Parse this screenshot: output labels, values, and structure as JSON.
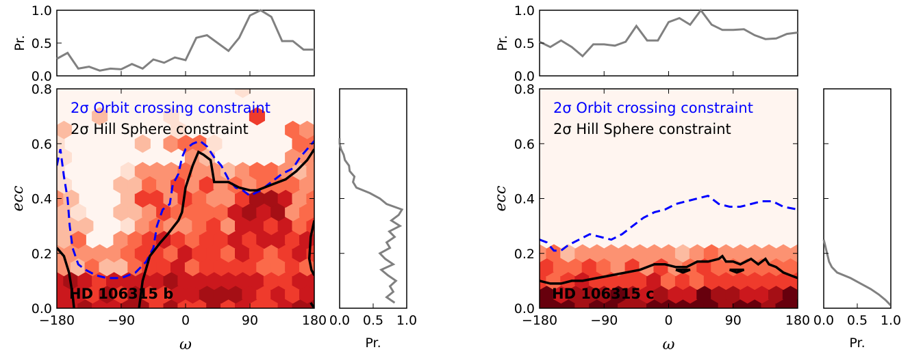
{
  "colors": {
    "blue_constraint": "#0000ff",
    "hill_constraint": "#000000",
    "marginal": "#808080",
    "hex_scale": [
      "#fff5f0",
      "#fee0d2",
      "#fcbba1",
      "#fc9272",
      "#fb6a4a",
      "#ef3b2c",
      "#cb181d",
      "#a50f15",
      "#67000d"
    ]
  },
  "chart_data": [
    {
      "type": "hexbin",
      "panel": "HD 106315 b",
      "label": "HD 106315 b",
      "xlabel": "ω",
      "ylabel": "ecc",
      "xlim": [
        -180,
        180
      ],
      "ylim": [
        0,
        0.8
      ],
      "xticks": [
        "−180",
        "−90",
        "0",
        "90",
        "180"
      ],
      "yticks": [
        "0.0",
        "0.2",
        "0.4",
        "0.6",
        "0.8"
      ],
      "legend": [
        "2σ Orbit crossing constraint",
        "2σ Hill Sphere constraint"
      ],
      "top_marginal": {
        "ylabel": "Pr.",
        "yticks": [
          "0.0",
          "0.5",
          "1.0"
        ],
        "x": [
          -180,
          -165,
          -150,
          -135,
          -120,
          -105,
          -90,
          -75,
          -60,
          -45,
          -30,
          -15,
          0,
          15,
          30,
          45,
          60,
          75,
          90,
          105,
          120,
          135,
          150,
          165,
          180
        ],
        "y": [
          0.26,
          0.35,
          0.11,
          0.14,
          0.08,
          0.11,
          0.1,
          0.18,
          0.11,
          0.25,
          0.2,
          0.28,
          0.24,
          0.58,
          0.62,
          0.5,
          0.38,
          0.58,
          0.92,
          1.0,
          0.9,
          0.53,
          0.53,
          0.4,
          0.4
        ]
      },
      "right_marginal": {
        "xlabel": "Pr.",
        "xticks": [
          "0.0",
          "0.5",
          "1.0"
        ],
        "ecc": [
          0.02,
          0.04,
          0.06,
          0.08,
          0.1,
          0.12,
          0.14,
          0.16,
          0.18,
          0.2,
          0.22,
          0.24,
          0.26,
          0.28,
          0.3,
          0.32,
          0.34,
          0.36,
          0.38,
          0.4,
          0.42,
          0.44,
          0.46,
          0.48,
          0.5,
          0.52,
          0.54,
          0.56,
          0.58,
          0.6,
          0.62
        ],
        "pr": [
          0.82,
          0.7,
          0.8,
          0.75,
          0.84,
          0.72,
          0.62,
          0.8,
          0.68,
          0.6,
          0.75,
          0.7,
          0.82,
          0.74,
          0.9,
          0.77,
          0.88,
          0.93,
          0.7,
          0.6,
          0.45,
          0.25,
          0.2,
          0.22,
          0.15,
          0.14,
          0.08,
          0.06,
          0.02,
          0.0,
          0.0
        ]
      },
      "orbit_crossing": [
        [
          -180,
          0.52
        ],
        [
          -175,
          0.58
        ],
        [
          -170,
          0.48
        ],
        [
          -165,
          0.4
        ],
        [
          -162,
          0.3
        ],
        [
          -158,
          0.22
        ],
        [
          -150,
          0.16
        ],
        [
          -140,
          0.14
        ],
        [
          -125,
          0.12
        ],
        [
          -110,
          0.11
        ],
        [
          -90,
          0.11
        ],
        [
          -70,
          0.13
        ],
        [
          -55,
          0.17
        ],
        [
          -45,
          0.22
        ],
        [
          -40,
          0.3
        ],
        [
          -32,
          0.36
        ],
        [
          -22,
          0.38
        ],
        [
          -18,
          0.45
        ],
        [
          -10,
          0.49
        ],
        [
          -5,
          0.55
        ],
        [
          0,
          0.58
        ],
        [
          10,
          0.6
        ],
        [
          20,
          0.61
        ],
        [
          30,
          0.59
        ],
        [
          40,
          0.55
        ],
        [
          50,
          0.52
        ],
        [
          60,
          0.47
        ],
        [
          70,
          0.44
        ],
        [
          80,
          0.43
        ],
        [
          90,
          0.41
        ],
        [
          105,
          0.43
        ],
        [
          120,
          0.46
        ],
        [
          135,
          0.49
        ],
        [
          150,
          0.51
        ],
        [
          160,
          0.55
        ],
        [
          170,
          0.58
        ],
        [
          180,
          0.61
        ]
      ],
      "hill_sphere": [
        [
          -180,
          0.22
        ],
        [
          -170,
          0.19
        ],
        [
          -163,
          0.13
        ],
        [
          -158,
          0.05
        ],
        [
          -156,
          0.0
        ],
        null,
        [
          -65,
          0.0
        ],
        [
          -60,
          0.1
        ],
        [
          -50,
          0.19
        ],
        [
          -35,
          0.24
        ],
        [
          -25,
          0.27
        ],
        [
          -10,
          0.32
        ],
        [
          -5,
          0.35
        ],
        [
          0,
          0.44
        ],
        [
          5,
          0.48
        ],
        [
          10,
          0.52
        ],
        [
          18,
          0.57
        ],
        [
          25,
          0.56
        ],
        [
          35,
          0.54
        ],
        [
          40,
          0.46
        ],
        [
          60,
          0.46
        ],
        [
          75,
          0.44
        ],
        [
          90,
          0.43
        ],
        [
          100,
          0.43
        ],
        [
          120,
          0.45
        ],
        [
          140,
          0.47
        ],
        [
          155,
          0.5
        ],
        [
          170,
          0.54
        ],
        [
          180,
          0.58
        ],
        null,
        [
          180,
          0.32
        ],
        [
          175,
          0.26
        ],
        [
          173,
          0.18
        ],
        [
          176,
          0.14
        ],
        [
          180,
          0.12
        ],
        null,
        [
          180,
          0.0
        ],
        [
          175,
          0.02
        ]
      ]
    },
    {
      "type": "hexbin",
      "panel": "HD 106315 c",
      "label": "HD 106315 c",
      "xlabel": "ω",
      "ylabel": "ecc",
      "xlim": [
        -180,
        180
      ],
      "ylim": [
        0,
        0.8
      ],
      "xticks": [
        "−180",
        "−90",
        "0",
        "90",
        "180"
      ],
      "yticks": [
        "0.0",
        "0.2",
        "0.4",
        "0.6",
        "0.8"
      ],
      "legend": [
        "2σ Orbit crossing constraint",
        "2σ Hill Sphere constraint"
      ],
      "top_marginal": {
        "ylabel": "Pr.",
        "yticks": [
          "0.0",
          "0.5",
          "1.0"
        ],
        "x": [
          -180,
          -165,
          -150,
          -135,
          -120,
          -105,
          -90,
          -75,
          -60,
          -45,
          -30,
          -15,
          0,
          15,
          30,
          45,
          60,
          75,
          90,
          105,
          120,
          135,
          150,
          165,
          180
        ],
        "y": [
          0.52,
          0.44,
          0.54,
          0.44,
          0.3,
          0.48,
          0.48,
          0.46,
          0.52,
          0.76,
          0.54,
          0.54,
          0.82,
          0.88,
          0.78,
          1.0,
          0.78,
          0.7,
          0.7,
          0.71,
          0.62,
          0.56,
          0.57,
          0.64,
          0.66
        ]
      },
      "right_marginal": {
        "xlabel": "Pr.",
        "xticks": [
          "0.0",
          "0.5",
          "1.0"
        ],
        "ecc": [
          0.01,
          0.03,
          0.05,
          0.07,
          0.09,
          0.11,
          0.13,
          0.15,
          0.17,
          0.19,
          0.21,
          0.23,
          0.25
        ],
        "pr": [
          1.0,
          0.92,
          0.82,
          0.7,
          0.55,
          0.4,
          0.2,
          0.12,
          0.08,
          0.06,
          0.04,
          0.02,
          0.0
        ]
      },
      "orbit_crossing": [
        [
          -180,
          0.25
        ],
        [
          -170,
          0.24
        ],
        [
          -160,
          0.21
        ],
        [
          -150,
          0.21
        ],
        [
          -140,
          0.23
        ],
        [
          -125,
          0.25
        ],
        [
          -110,
          0.27
        ],
        [
          -95,
          0.26
        ],
        [
          -80,
          0.25
        ],
        [
          -65,
          0.27
        ],
        [
          -50,
          0.3
        ],
        [
          -35,
          0.33
        ],
        [
          -20,
          0.35
        ],
        [
          -5,
          0.36
        ],
        [
          10,
          0.38
        ],
        [
          25,
          0.39
        ],
        [
          40,
          0.4
        ],
        [
          55,
          0.41
        ],
        [
          70,
          0.38
        ],
        [
          85,
          0.37
        ],
        [
          100,
          0.37
        ],
        [
          115,
          0.38
        ],
        [
          130,
          0.39
        ],
        [
          145,
          0.39
        ],
        [
          160,
          0.37
        ],
        [
          180,
          0.36
        ]
      ],
      "hill_sphere": [
        [
          -180,
          0.1
        ],
        [
          -165,
          0.09
        ],
        [
          -150,
          0.09
        ],
        [
          -135,
          0.1
        ],
        [
          -120,
          0.1
        ],
        [
          -100,
          0.11
        ],
        [
          -80,
          0.12
        ],
        [
          -60,
          0.13
        ],
        [
          -40,
          0.14
        ],
        [
          -20,
          0.16
        ],
        [
          -5,
          0.16
        ],
        [
          10,
          0.15
        ],
        [
          25,
          0.15
        ],
        [
          40,
          0.17
        ],
        [
          55,
          0.17
        ],
        [
          70,
          0.18
        ],
        [
          75,
          0.19
        ],
        [
          80,
          0.17
        ],
        [
          90,
          0.17
        ],
        [
          100,
          0.16
        ],
        [
          115,
          0.18
        ],
        [
          125,
          0.16
        ],
        [
          135,
          0.18
        ],
        [
          140,
          0.16
        ],
        [
          150,
          0.15
        ],
        [
          160,
          0.13
        ],
        [
          170,
          0.12
        ],
        [
          180,
          0.11
        ],
        null,
        [
          10,
          0.14
        ],
        [
          20,
          0.13
        ],
        [
          30,
          0.14
        ],
        [
          20,
          0.14
        ],
        [
          10,
          0.14
        ],
        null,
        [
          85,
          0.14
        ],
        [
          95,
          0.13
        ],
        [
          105,
          0.14
        ],
        [
          95,
          0.14
        ],
        [
          85,
          0.14
        ]
      ]
    }
  ]
}
